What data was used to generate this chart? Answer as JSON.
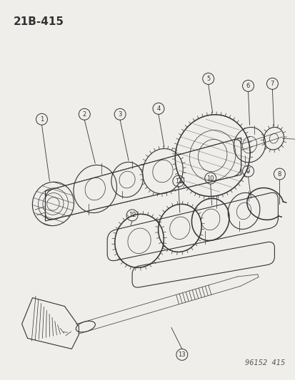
{
  "title": "21B-415",
  "footer": "96152  415",
  "bg_color": "#f0eeeb",
  "line_color": "#333333",
  "label_color": "#222222",
  "title_fontsize": 11,
  "footer_fontsize": 7,
  "label_fontsize": 6,
  "fig_width": 4.14,
  "fig_height": 5.33,
  "dpi": 100
}
